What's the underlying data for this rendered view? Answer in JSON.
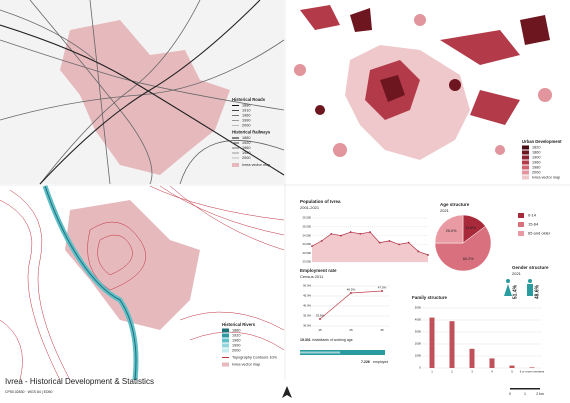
{
  "title": "Ivrea - Historical Development & Statistics",
  "subtitle": "CP50.02830 · WGS 84 | ED50",
  "map_roads": {
    "legend": [
      {
        "title": "Historical Roads",
        "symbol": "line",
        "items": [
          {
            "label": "1880",
            "color": "#111111"
          },
          {
            "label": "1910",
            "color": "#444444"
          },
          {
            "label": "1960",
            "color": "#777777"
          },
          {
            "label": "1990",
            "color": "#999999"
          },
          {
            "label": "2000",
            "color": "#bbbbbb"
          }
        ]
      },
      {
        "title": "Historical Railways",
        "symbol": "line",
        "items": [
          {
            "label": "1880",
            "color": "#111111"
          },
          {
            "label": "1920",
            "color": "#444444"
          },
          {
            "label": "1960",
            "color": "#777777"
          },
          {
            "label": "1980",
            "color": "#999999"
          },
          {
            "label": "2000",
            "color": "#bbbbbb"
          }
        ]
      },
      {
        "symbol": "box",
        "items": [
          {
            "label": "Ivrea vector map",
            "color": "#e6b9bd"
          }
        ]
      }
    ]
  },
  "map_urban": {
    "legend": [
      {
        "title": "Urban Development",
        "symbol": "box",
        "items": [
          {
            "label": "1820",
            "color": "#4a0d14"
          },
          {
            "label": "1860",
            "color": "#6e1620"
          },
          {
            "label": "1900",
            "color": "#8f2230"
          },
          {
            "label": "1960",
            "color": "#b33a48"
          },
          {
            "label": "1980",
            "color": "#cf6571"
          },
          {
            "label": "2000",
            "color": "#e2959c"
          },
          {
            "label": "Ivrea vector map",
            "color": "#efc8cb"
          }
        ]
      }
    ]
  },
  "map_rivers": {
    "legend": [
      {
        "title": "Historical Rivers",
        "symbol": "box",
        "items": [
          {
            "label": "1880",
            "color": "#1f6f78"
          },
          {
            "label": "1920",
            "color": "#2f9aa5"
          },
          {
            "label": "1960",
            "color": "#5fbfc8"
          },
          {
            "label": "1990",
            "color": "#94d6dc"
          },
          {
            "label": "2000",
            "color": "#c6ecef"
          }
        ]
      },
      {
        "symbol": "line",
        "items": [
          {
            "label": "Topography Contours 10m",
            "color": "#c0303c"
          }
        ]
      },
      {
        "symbol": "box",
        "items": [
          {
            "label": "Ivrea vector map",
            "color": "#e6b9bd"
          }
        ]
      }
    ]
  },
  "population": {
    "type": "line",
    "title": "Population of Ivrea",
    "subtitle": "2001-2021",
    "color": "#b03040",
    "fill": "#f2c9cc",
    "values": [
      23900,
      24200,
      24600,
      24500,
      24700,
      24600,
      24700,
      24100,
      24200,
      24000,
      24100,
      23600,
      23400
    ],
    "ylim": [
      23000,
      25500
    ],
    "yticks": [
      {
        "value": 23000,
        "label": "23.000"
      },
      {
        "value": 23500,
        "label": "23.500"
      },
      {
        "value": 24000,
        "label": "24.000"
      },
      {
        "value": 24500,
        "label": "24.500"
      },
      {
        "value": 25000,
        "label": "25.000"
      },
      {
        "value": 25500,
        "label": "25.500"
      }
    ]
  },
  "age": {
    "type": "pie",
    "title": "Age structure",
    "subtitle": "2021",
    "categories": [
      "0-14",
      "15-64",
      "65 and older"
    ],
    "values": [
      14.8,
      60.2,
      25.0
    ],
    "value_labels": [
      "14.8%",
      "60.2%",
      "25.0%"
    ],
    "colors": [
      "#a82a3a",
      "#d9707e",
      "#e99aa2"
    ]
  },
  "gender": {
    "title": "Gender structure",
    "subtitle": "2021",
    "values": [
      51.4,
      48.6
    ],
    "value_labels": [
      "51.4%",
      "48.6%"
    ],
    "color": "#2a9ca0"
  },
  "employment": {
    "type": "line",
    "title": "Employment rate",
    "subtitle": "Census 2011",
    "color": "#c0404c",
    "categories": [
      "15",
      "25",
      "35"
    ],
    "values": [
      33.5,
      46.5,
      47.5
    ],
    "value_labels": [
      "33.5%",
      "46.5%",
      "47.5%"
    ],
    "ylim": [
      30,
      50
    ],
    "yticks": [
      {
        "value": 30,
        "label": "30.0%"
      },
      {
        "value": 35,
        "label": "35.0%"
      },
      {
        "value": 40,
        "label": "40.0%"
      },
      {
        "value": 45,
        "label": "45.0%"
      },
      {
        "value": 50,
        "label": "50.0%"
      }
    ]
  },
  "working": {
    "values": [
      15301,
      7226
    ],
    "value_labels": [
      "15.301",
      "7.226"
    ],
    "labels": [
      "inhabitants of working age",
      "employed"
    ],
    "colors": [
      "#2a9ca0",
      "#9fd3d6"
    ]
  },
  "family": {
    "type": "bar",
    "title": "Family structure",
    "color": "#c0505a",
    "categories": [
      "1",
      "2",
      "3",
      "4",
      "5",
      "6 or more members"
    ],
    "values": [
      4200,
      3900,
      1600,
      800,
      200,
      50
    ],
    "ylim": [
      0,
      5000
    ],
    "yticks": [
      0,
      1000,
      2000,
      3000,
      4000,
      5000
    ]
  },
  "scale": [
    "0",
    "1",
    "2 km"
  ]
}
